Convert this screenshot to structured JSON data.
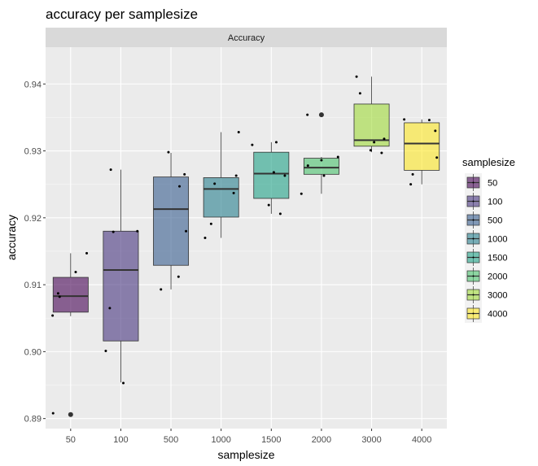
{
  "chart_data": {
    "type": "boxplot",
    "title": "accuracy per samplesize",
    "facet_label": "Accuracy",
    "xlabel": "samplesize",
    "ylabel": "accuracy",
    "ylim": [
      0.8885,
      0.9455
    ],
    "yticks": [
      0.89,
      0.9,
      0.91,
      0.92,
      0.93,
      0.94
    ],
    "ytick_labels": [
      "0.89",
      "0.90",
      "0.91",
      "0.92",
      "0.93",
      "0.94"
    ],
    "categories": [
      "50",
      "100",
      "500",
      "1000",
      "1500",
      "2000",
      "3000",
      "4000"
    ],
    "legend_title": "samplesize",
    "legend_position": "right",
    "colors": [
      "#440154",
      "#46337e",
      "#365c8d",
      "#277f8e",
      "#1fa187",
      "#4ac16d",
      "#a0da39",
      "#fde725"
    ],
    "box_opacity": 0.6,
    "boxes": [
      {
        "category": "50",
        "whisker_low": 0.9053,
        "q1": 0.9059,
        "median": 0.9083,
        "q3": 0.9111,
        "whisker_high": 0.9147,
        "outliers": [
          0.8906
        ]
      },
      {
        "category": "100",
        "whisker_low": 0.8954,
        "q1": 0.9016,
        "median": 0.9122,
        "q3": 0.918,
        "whisker_high": 0.9272,
        "outliers": []
      },
      {
        "category": "500",
        "whisker_low": 0.9093,
        "q1": 0.9129,
        "median": 0.9213,
        "q3": 0.9261,
        "whisker_high": 0.9297,
        "outliers": []
      },
      {
        "category": "1000",
        "whisker_low": 0.917,
        "q1": 0.9201,
        "median": 0.9243,
        "q3": 0.926,
        "whisker_high": 0.9328,
        "outliers": []
      },
      {
        "category": "1500",
        "whisker_low": 0.9206,
        "q1": 0.9229,
        "median": 0.9266,
        "q3": 0.9298,
        "whisker_high": 0.9313,
        "outliers": []
      },
      {
        "category": "2000",
        "whisker_low": 0.9236,
        "q1": 0.9265,
        "median": 0.9275,
        "q3": 0.9289,
        "whisker_high": 0.9291,
        "outliers": [
          0.9354
        ]
      },
      {
        "category": "3000",
        "whisker_low": 0.9298,
        "q1": 0.9307,
        "median": 0.9316,
        "q3": 0.937,
        "whisker_high": 0.9411,
        "outliers": []
      },
      {
        "category": "4000",
        "whisker_low": 0.925,
        "q1": 0.9271,
        "median": 0.9311,
        "q3": 0.9342,
        "whisker_high": 0.9347,
        "outliers": []
      }
    ],
    "points": [
      {
        "category": "50",
        "offset": -0.35,
        "y": 0.8908
      },
      {
        "category": "50",
        "offset": -0.36,
        "y": 0.9054
      },
      {
        "category": "50",
        "offset": -0.25,
        "y": 0.9087
      },
      {
        "category": "50",
        "offset": -0.22,
        "y": 0.9082
      },
      {
        "category": "50",
        "offset": 0.1,
        "y": 0.9119
      },
      {
        "category": "50",
        "offset": 0.32,
        "y": 0.9147
      },
      {
        "category": "100",
        "offset": -0.3,
        "y": 0.9001
      },
      {
        "category": "100",
        "offset": -0.22,
        "y": 0.9065
      },
      {
        "category": "100",
        "offset": -0.2,
        "y": 0.9272
      },
      {
        "category": "100",
        "offset": -0.15,
        "y": 0.9179
      },
      {
        "category": "100",
        "offset": 0.05,
        "y": 0.8953
      },
      {
        "category": "100",
        "offset": 0.33,
        "y": 0.918
      },
      {
        "category": "500",
        "offset": -0.2,
        "y": 0.9093
      },
      {
        "category": "500",
        "offset": -0.05,
        "y": 0.9298
      },
      {
        "category": "500",
        "offset": 0.15,
        "y": 0.9112
      },
      {
        "category": "500",
        "offset": 0.17,
        "y": 0.9247
      },
      {
        "category": "500",
        "offset": 0.27,
        "y": 0.9265
      },
      {
        "category": "500",
        "offset": 0.3,
        "y": 0.918
      },
      {
        "category": "1000",
        "offset": -0.32,
        "y": 0.917
      },
      {
        "category": "1000",
        "offset": -0.2,
        "y": 0.9191
      },
      {
        "category": "1000",
        "offset": -0.13,
        "y": 0.9251
      },
      {
        "category": "1000",
        "offset": 0.25,
        "y": 0.9237
      },
      {
        "category": "1000",
        "offset": 0.3,
        "y": 0.9263
      },
      {
        "category": "1000",
        "offset": 0.35,
        "y": 0.9328
      },
      {
        "category": "1500",
        "offset": -0.38,
        "y": 0.9309
      },
      {
        "category": "1500",
        "offset": -0.05,
        "y": 0.9219
      },
      {
        "category": "1500",
        "offset": 0.05,
        "y": 0.9268
      },
      {
        "category": "1500",
        "offset": 0.1,
        "y": 0.9313
      },
      {
        "category": "1500",
        "offset": 0.18,
        "y": 0.9206
      },
      {
        "category": "1500",
        "offset": 0.27,
        "y": 0.9263
      },
      {
        "category": "2000",
        "offset": -0.4,
        "y": 0.9236
      },
      {
        "category": "2000",
        "offset": -0.28,
        "y": 0.9354
      },
      {
        "category": "2000",
        "offset": -0.27,
        "y": 0.9278
      },
      {
        "category": "2000",
        "offset": 0.0,
        "y": 0.9286
      },
      {
        "category": "2000",
        "offset": 0.05,
        "y": 0.9263
      },
      {
        "category": "2000",
        "offset": 0.33,
        "y": 0.9291
      },
      {
        "category": "3000",
        "offset": -0.3,
        "y": 0.9411
      },
      {
        "category": "3000",
        "offset": -0.23,
        "y": 0.9386
      },
      {
        "category": "3000",
        "offset": -0.02,
        "y": 0.9301
      },
      {
        "category": "3000",
        "offset": 0.05,
        "y": 0.9313
      },
      {
        "category": "3000",
        "offset": 0.2,
        "y": 0.9297
      },
      {
        "category": "3000",
        "offset": 0.25,
        "y": 0.9318
      },
      {
        "category": "4000",
        "offset": -0.35,
        "y": 0.9347
      },
      {
        "category": "4000",
        "offset": -0.18,
        "y": 0.9265
      },
      {
        "category": "4000",
        "offset": -0.22,
        "y": 0.925
      },
      {
        "category": "4000",
        "offset": 0.15,
        "y": 0.9346
      },
      {
        "category": "4000",
        "offset": 0.27,
        "y": 0.933
      },
      {
        "category": "4000",
        "offset": 0.3,
        "y": 0.929
      }
    ]
  }
}
